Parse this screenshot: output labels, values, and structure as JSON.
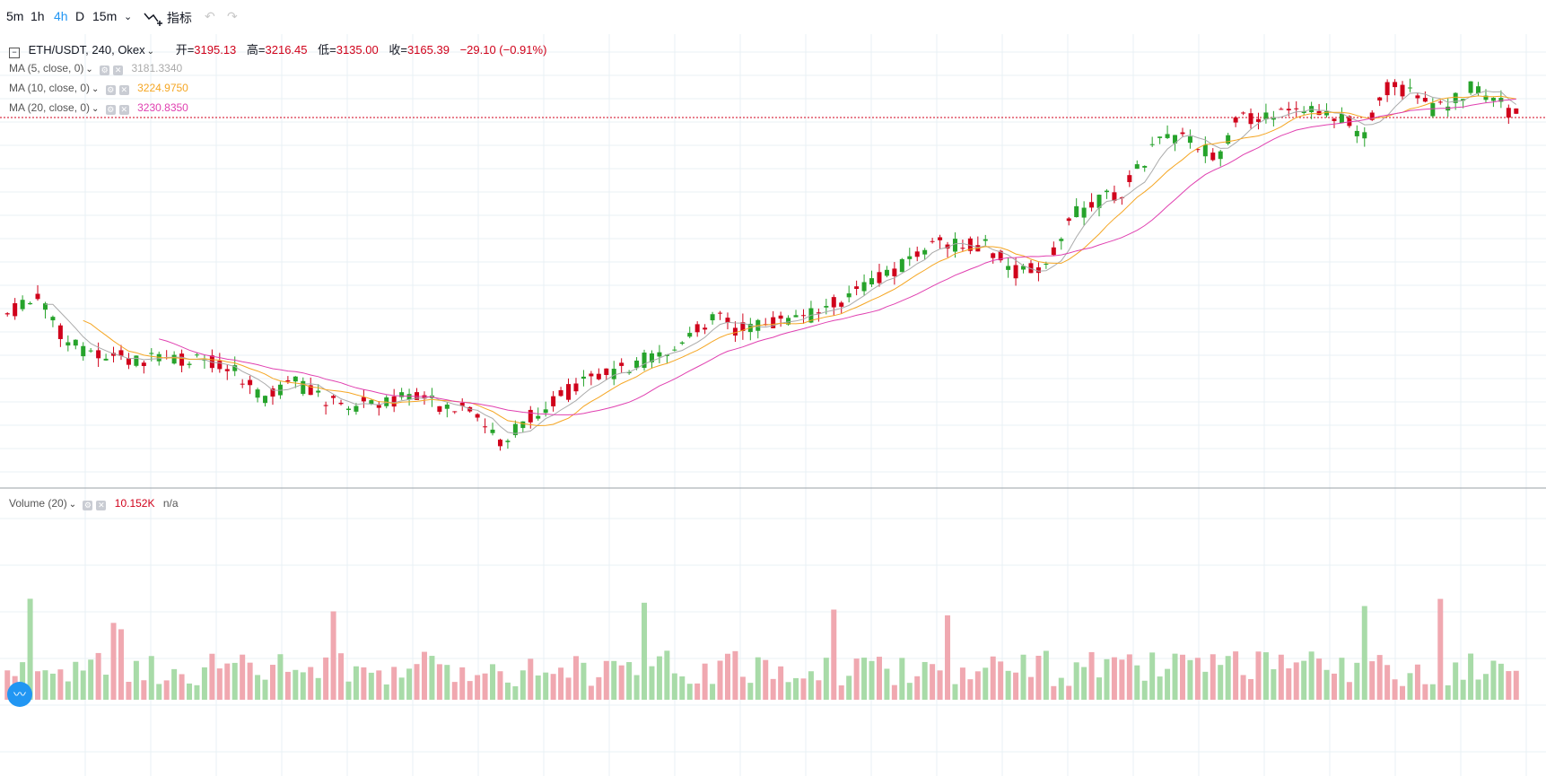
{
  "toolbar": {
    "intervals": [
      "5m",
      "1h",
      "4h",
      "D",
      "15m"
    ],
    "active_interval": "4h",
    "indicators_label": "指标"
  },
  "legend": {
    "symbol": "ETH/USDT, 240, Okex",
    "open_label": "开=",
    "open": "3195.13",
    "high_label": "高=",
    "high": "3216.45",
    "low_label": "低=",
    "low": "3135.00",
    "close_label": "收=",
    "close": "3165.39",
    "change": "−29.10 (−0.91%)"
  },
  "mas": [
    {
      "label": "MA (5, close, 0)",
      "value": "3181.3340",
      "color": "#aaaaaa"
    },
    {
      "label": "MA (10, close, 0)",
      "value": "3224.9750",
      "color": "#f5a623"
    },
    {
      "label": "MA (20, close, 0)",
      "value": "3230.8350",
      "color": "#e040b0"
    }
  ],
  "volume": {
    "label": "Volume (20)",
    "value": "10.152K",
    "extra": "n/a"
  },
  "colors": {
    "up": "#26a32b",
    "down": "#d0021b",
    "up_vol": "#a8dba8",
    "down_vol": "#f0a8b0",
    "grid": "#e8f0f4",
    "price_line": "#d0021b"
  },
  "chart_data": {
    "type": "candlestick",
    "description_free": true,
    "count": 200
  }
}
